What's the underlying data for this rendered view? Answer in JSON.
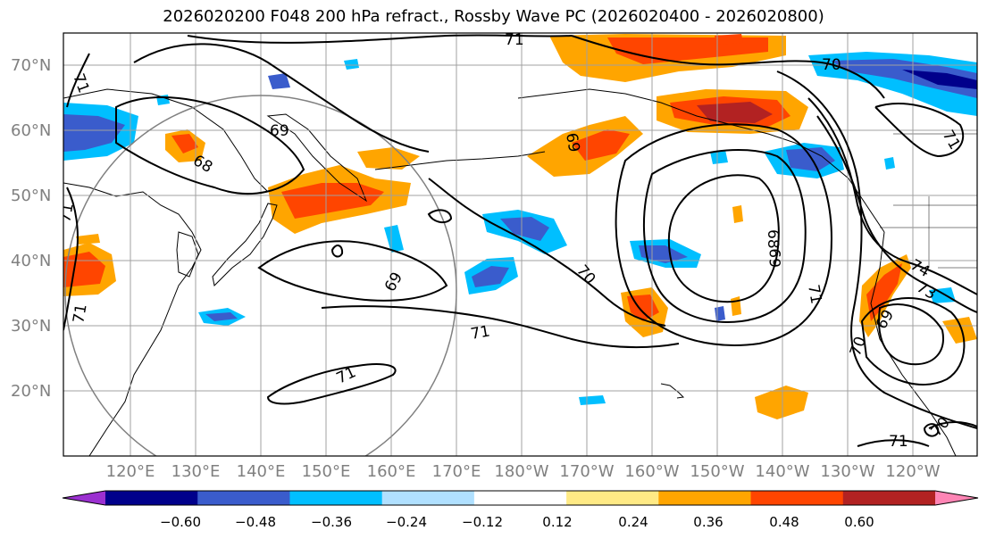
{
  "title": "2026020200 F048 200 hPa refract., Rossby Wave PC (2026020400 - 2026020800)",
  "map": {
    "lat_labels": [
      "70°N",
      "60°N",
      "50°N",
      "40°N",
      "30°N",
      "20°N"
    ],
    "lon_labels": [
      "120°E",
      "130°E",
      "140°E",
      "150°E",
      "160°E",
      "170°E",
      "180°W",
      "170°W",
      "160°W",
      "150°W",
      "140°W",
      "130°W",
      "120°W"
    ],
    "contour_labels": [
      "71",
      "71",
      "69",
      "68",
      "71",
      "71",
      "69",
      "70",
      "71",
      "71",
      "70",
      "69",
      "71",
      "69",
      "68",
      "70",
      "71",
      "74",
      "73",
      "69",
      "70",
      "71",
      "71",
      "75"
    ]
  },
  "colorbar": {
    "ticks": [
      "−0.60",
      "−0.48",
      "−0.36",
      "−0.24",
      "−0.12",
      "0.12",
      "0.24",
      "0.36",
      "0.48",
      "0.60"
    ],
    "colors": [
      "#9b30d0",
      "#00008b",
      "#3a5ccc",
      "#00bfff",
      "#b0e0ff",
      "#ffffff",
      "#ffea85",
      "#ffa500",
      "#ff4500",
      "#b22222",
      "#ff85b5"
    ]
  }
}
